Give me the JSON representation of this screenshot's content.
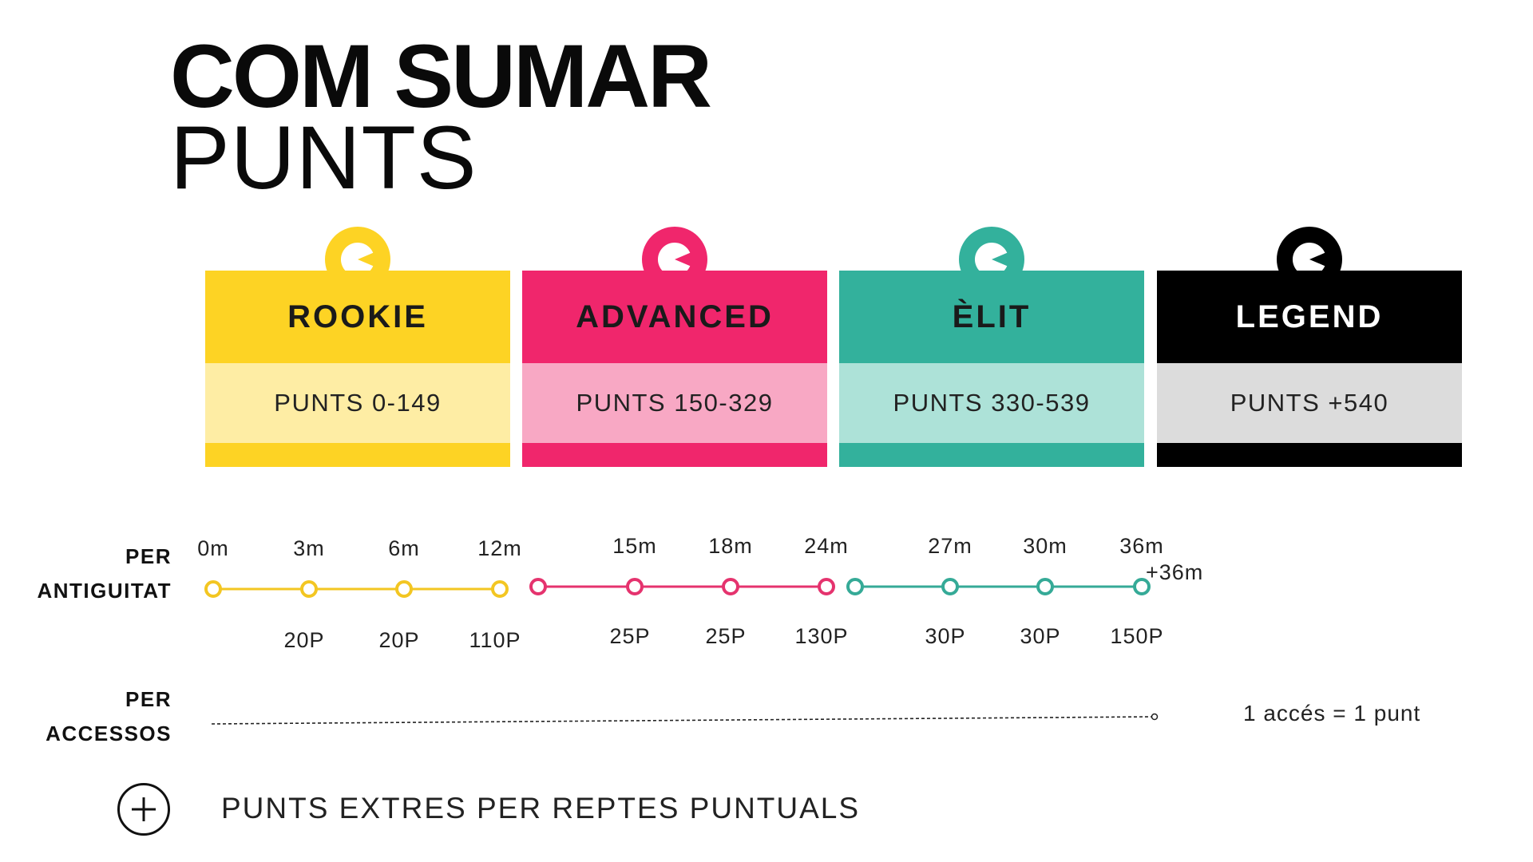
{
  "title": {
    "line1": "COM SUMAR",
    "line2": "PUNTS"
  },
  "levels": [
    {
      "name": "ROOKIE",
      "range": "PUNTS 0-149",
      "head_color": "#fdd324",
      "range_color": "#feeda4",
      "head_text_color": "#1a1a1a"
    },
    {
      "name": "ADVANCED",
      "range": "PUNTS 150-329",
      "head_color": "#f0266c",
      "range_color": "#f8a8c4",
      "head_text_color": "#1a1a1a"
    },
    {
      "name": "ÈLIT",
      "range": "PUNTS 330-539",
      "head_color": "#33b19c",
      "range_color": "#ade2d8",
      "head_text_color": "#1a1a1a"
    },
    {
      "name": "LEGEND",
      "range": "PUNTS +540",
      "head_color": "#000000",
      "range_color": "#dcdcdc",
      "head_text_color": "#ffffff"
    }
  ],
  "seniority": {
    "label_line1": "PER",
    "label_line2": "ANTIGUITAT",
    "segments": [
      {
        "color": "#f3c622",
        "months": [
          "0m",
          "3m",
          "6m",
          "12m"
        ],
        "points": [
          "",
          "20P",
          "20P",
          "110P"
        ]
      },
      {
        "color": "#e5336e",
        "months": [
          "",
          "15m",
          "18m",
          "24m"
        ],
        "points": [
          "",
          "25P",
          "25P",
          "130P"
        ]
      },
      {
        "color": "#35aa97",
        "months": [
          "",
          "27m",
          "30m",
          "36m"
        ],
        "points": [
          "",
          "30P",
          "30P",
          "150P"
        ]
      }
    ],
    "extra": "+36m"
  },
  "accesses": {
    "label_line1": "PER",
    "label_line2": "ACCESSOS",
    "rule": "1 accés = 1 punt"
  },
  "bonus": {
    "text": "PUNTS EXTRES PER REPTES PUNTUALS",
    "icon": "plus-circle-icon"
  }
}
